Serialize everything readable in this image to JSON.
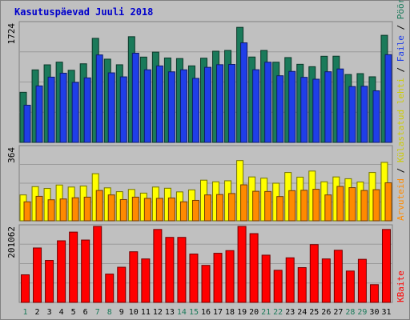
{
  "chart_data": [
    {
      "type": "bar",
      "title": "Kasutuspäevad Juuli 2018",
      "categories": [
        "1",
        "2",
        "3",
        "4",
        "5",
        "6",
        "7",
        "8",
        "9",
        "10",
        "11",
        "12",
        "13",
        "14",
        "15",
        "16",
        "17",
        "18",
        "19",
        "20",
        "21",
        "22",
        "23",
        "24",
        "25",
        "26",
        "27",
        "28",
        "29",
        "30",
        "31"
      ],
      "weekend_days": [
        "1",
        "7",
        "8",
        "14",
        "15",
        "21",
        "22",
        "28",
        "29"
      ],
      "ymax_label": "1724",
      "ylim": [
        0,
        1724
      ],
      "right_axis_label_parts": [
        "Pöördumisi",
        "Faile",
        "Külastatud lehti"
      ],
      "series": [
        {
          "name": "Pöördumisi",
          "color": "#1a7a5a",
          "values": [
            725,
            1049,
            1122,
            1161,
            1043,
            1137,
            1505,
            1204,
            1123,
            1529,
            1234,
            1306,
            1221,
            1213,
            1107,
            1218,
            1319,
            1330,
            1664,
            1235,
            1330,
            1160,
            1227,
            1130,
            1095,
            1246,
            1247,
            982,
            995,
            949,
            1549
          ]
        },
        {
          "name": "Faile",
          "color": "#1f3ee8",
          "values": [
            538,
            817,
            944,
            1001,
            868,
            933,
            1265,
            1006,
            948,
            1290,
            1050,
            1106,
            1021,
            1050,
            926,
            1086,
            1124,
            1128,
            1440,
            1051,
            1160,
            964,
            1027,
            941,
            914,
            1022,
            1062,
            808,
            812,
            746,
            1269
          ]
        }
      ]
    },
    {
      "type": "bar",
      "ymax_label": "364",
      "ylim": [
        0,
        364
      ],
      "series": [
        {
          "name": "Külastatud lehti",
          "color": "#ffff00",
          "values": [
            128,
            169,
            160,
            177,
            167,
            172,
            233,
            163,
            144,
            155,
            137,
            167,
            161,
            143,
            153,
            201,
            193,
            198,
            298,
            217,
            211,
            186,
            239,
            216,
            246,
            193,
            217,
            208,
            192,
            239,
            289
          ]
        },
        {
          "name": "Arvuteid",
          "color": "#ff8a00",
          "values": [
            94,
            121,
            104,
            108,
            114,
            117,
            150,
            128,
            105,
            117,
            111,
            111,
            113,
            94,
            101,
            128,
            130,
            135,
            178,
            146,
            145,
            120,
            149,
            151,
            156,
            128,
            170,
            164,
            150,
            154,
            188
          ]
        }
      ],
      "right_axis_label": "Arvuteid"
    },
    {
      "type": "bar",
      "ymax_label": "201062",
      "ylim": [
        0,
        201062
      ],
      "right_axis_label": "KBaite",
      "series": [
        {
          "name": "KBaite",
          "color": "#ff0000",
          "values": [
            73000,
            144000,
            111000,
            163000,
            186000,
            165000,
            201062,
            75000,
            93000,
            134000,
            115000,
            193000,
            172000,
            172000,
            128000,
            98000,
            130000,
            137000,
            201062,
            182000,
            125000,
            85000,
            118000,
            92000,
            153000,
            115000,
            138000,
            83000,
            114000,
            47000,
            193000
          ]
        }
      ]
    }
  ]
}
